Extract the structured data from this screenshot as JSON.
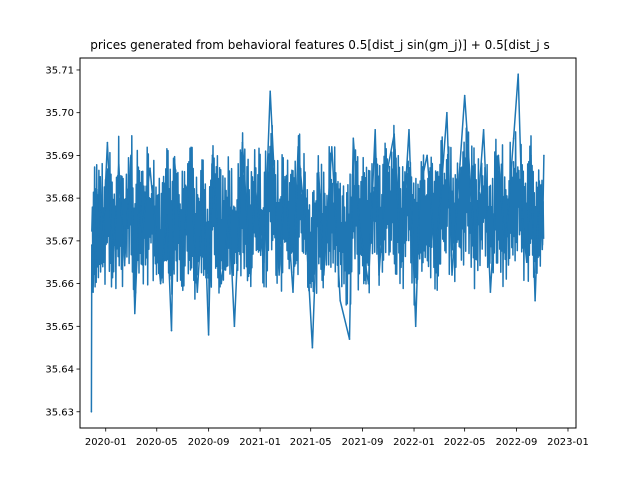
{
  "chart_data": {
    "type": "line",
    "title": "prices generated from behavioral features 0.5[dist_j sin(gm_j)] + 0.5[dist_j s",
    "xlabel": "",
    "ylabel": "",
    "x_range": [
      "2019-11-01",
      "2023-01-20"
    ],
    "ylim": [
      35.6262,
      35.7128
    ],
    "x_ticks": [
      {
        "date": "2020-01-01",
        "label": "2020-01"
      },
      {
        "date": "2020-05-01",
        "label": "2020-05"
      },
      {
        "date": "2020-09-01",
        "label": "2020-09"
      },
      {
        "date": "2021-01-01",
        "label": "2021-01"
      },
      {
        "date": "2021-05-01",
        "label": "2021-05"
      },
      {
        "date": "2021-09-01",
        "label": "2021-09"
      },
      {
        "date": "2022-01-01",
        "label": "2022-01"
      },
      {
        "date": "2022-05-01",
        "label": "2022-05"
      },
      {
        "date": "2022-09-01",
        "label": "2022-09"
      },
      {
        "date": "2023-01-01",
        "label": "2023-01"
      }
    ],
    "y_ticks": [
      35.63,
      35.64,
      35.65,
      35.66,
      35.67,
      35.68,
      35.69,
      35.7,
      35.71
    ],
    "y_tick_labels": [
      "35.63",
      "35.64",
      "35.65",
      "35.66",
      "35.67",
      "35.68",
      "35.69",
      "35.70",
      "35.71"
    ],
    "grid": false,
    "color": "#1f77b4",
    "series": [
      {
        "x": [
          "2019-11-28",
          "2019-11-29",
          "2019-12-02",
          "2019-12-05",
          "2019-12-08",
          "2019-12-11",
          "2019-12-15",
          "2019-12-19",
          "2019-12-24",
          "2020-01-05",
          "2020-01-18",
          "2020-02-01",
          "2020-02-05",
          "2020-02-15",
          "2020-03-01",
          "2020-03-10",
          "2020-03-22",
          "2020-03-27",
          "2020-04-15",
          "2020-05-10",
          "2020-05-25",
          "2020-06-05",
          "2020-06-12",
          "2020-07-01",
          "2020-07-20",
          "2020-08-05",
          "2020-08-20",
          "2020-09-01",
          "2020-09-10",
          "2020-10-01",
          "2020-10-20",
          "2020-11-01",
          "2020-11-20",
          "2020-12-10",
          "2020-12-20",
          "2021-01-10",
          "2021-01-25",
          "2021-02-15",
          "2021-03-01",
          "2021-03-20",
          "2021-04-01",
          "2021-04-20",
          "2021-05-05",
          "2021-05-20",
          "2021-06-01",
          "2021-06-20",
          "2021-07-10",
          "2021-08-01",
          "2021-08-10",
          "2021-08-25",
          "2021-09-15",
          "2021-10-01",
          "2021-10-10",
          "2021-10-25",
          "2021-11-15",
          "2021-12-01",
          "2021-12-20",
          "2022-01-05",
          "2022-01-15",
          "2022-02-01",
          "2022-02-20",
          "2022-03-05",
          "2022-03-20",
          "2022-04-01",
          "2022-04-20",
          "2022-05-01",
          "2022-05-25",
          "2022-06-15",
          "2022-07-01",
          "2022-07-20",
          "2022-08-05",
          "2022-08-25",
          "2022-09-05",
          "2022-09-15",
          "2022-09-25",
          "2022-10-05",
          "2022-10-15",
          "2022-10-25",
          "2022-11-01",
          "2022-11-05"
        ],
        "y": [
          35.63,
          35.669,
          35.658,
          35.676,
          35.665,
          35.682,
          35.671,
          35.685,
          35.667,
          35.693,
          35.664,
          35.688,
          35.68,
          35.665,
          35.69,
          35.653,
          35.683,
          35.672,
          35.687,
          35.66,
          35.676,
          35.649,
          35.689,
          35.665,
          35.688,
          35.658,
          35.682,
          35.648,
          35.69,
          35.66,
          35.676,
          35.65,
          35.693,
          35.662,
          35.683,
          35.665,
          35.705,
          35.662,
          35.685,
          35.658,
          35.692,
          35.672,
          35.645,
          35.686,
          35.662,
          35.692,
          35.656,
          35.647,
          35.694,
          35.673,
          35.66,
          35.696,
          35.662,
          35.684,
          35.695,
          35.665,
          35.696,
          35.65,
          35.682,
          35.69,
          35.666,
          35.68,
          35.7,
          35.662,
          35.688,
          35.704,
          35.668,
          35.696,
          35.658,
          35.69,
          35.668,
          35.694,
          35.709,
          35.675,
          35.665,
          35.69,
          35.656,
          35.684,
          35.668,
          35.69
        ]
      }
    ]
  }
}
